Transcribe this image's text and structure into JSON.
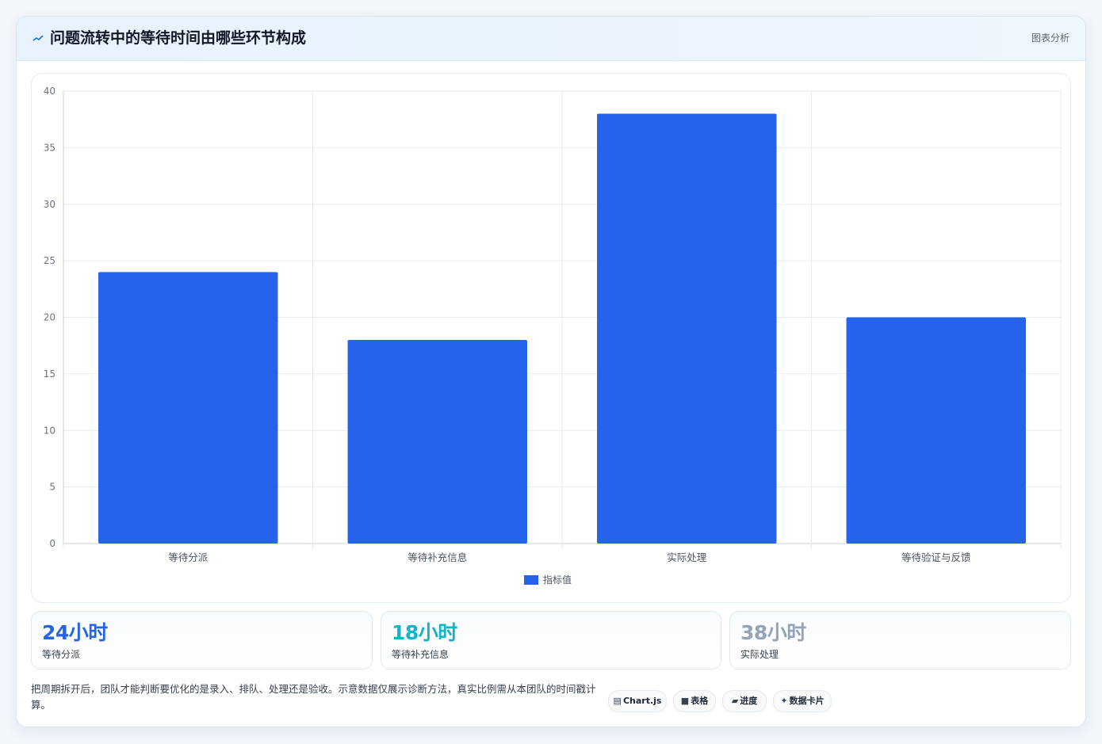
{
  "header": {
    "title": "问题流转中的等待时间由哪些环节构成",
    "tag": "图表分析",
    "icon": "trend-line-icon"
  },
  "chart_data": {
    "type": "bar",
    "categories": [
      "等待分派",
      "等待补充信息",
      "实际处理",
      "等待验证与反馈"
    ],
    "series": [
      {
        "name": "指标值",
        "values": [
          24,
          18,
          38,
          20
        ]
      }
    ],
    "ylim": [
      0,
      40
    ],
    "yticks": [
      0,
      5,
      10,
      15,
      20,
      25,
      30,
      35,
      40
    ],
    "grid": true,
    "legend_position": "bottom",
    "bar_color": "#2563eb"
  },
  "stats": [
    {
      "value": "24小时",
      "label": "等待分派",
      "color": "#2563eb"
    },
    {
      "value": "18小时",
      "label": "等待补充信息",
      "color": "#14b3c7"
    },
    {
      "value": "38小时",
      "label": "实际处理",
      "color": "#94a3b8"
    }
  ],
  "note": "把周期拆开后，团队才能判断要优化的是录入、排队、处理还是验收。示意数据仅展示诊断方法，真实比例需从本团队的时间戳计算。",
  "chips": [
    {
      "icon": "chart-icon",
      "label": "Chart.js"
    },
    {
      "icon": "table-icon",
      "label": "表格"
    },
    {
      "icon": "progress-icon",
      "label": "进度"
    },
    {
      "icon": "sparkle-icon",
      "label": "数据卡片"
    }
  ]
}
